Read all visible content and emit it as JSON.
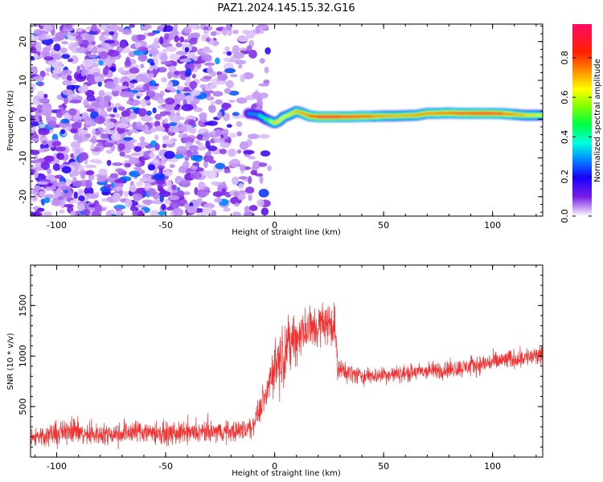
{
  "title": "PAZ1.2024.145.15.32.G16",
  "chart_data": [
    {
      "type": "heatmap",
      "xlabel": "Height of straight line (km)",
      "ylabel": "Frequency (Hz)",
      "xlim": [
        -112,
        123
      ],
      "ylim": [
        -25,
        24.5
      ],
      "xticks": [
        -100,
        -50,
        0,
        50,
        100
      ],
      "xtick_labels": [
        "-100",
        "-50",
        "0",
        "50",
        "100"
      ],
      "yticks": [
        -20,
        -10,
        0,
        10,
        20
      ],
      "ytick_labels": [
        "-20",
        "-10",
        "0",
        "10",
        "20"
      ],
      "colorbar": {
        "label": "Normalized spectral amplitude",
        "range": [
          0,
          0.97
        ],
        "ticks": [
          0.0,
          0.2,
          0.4,
          0.6,
          0.8
        ],
        "tick_labels": [
          "0.0",
          "0.2",
          "0.4",
          "0.6",
          "0.8"
        ],
        "colormap": "gist_rainbow_r"
      },
      "noise_region": {
        "x_range": [
          -112,
          -8
        ],
        "y_range": [
          -25,
          24.5
        ],
        "max_amplitude": 0.3
      },
      "signal_ridge": [
        {
          "x": -12,
          "y": 1.5,
          "amp": 0.25
        },
        {
          "x": -7,
          "y": 1.0,
          "amp": 0.35
        },
        {
          "x": -4,
          "y": 0.0,
          "amp": 0.45
        },
        {
          "x": -2,
          "y": -0.5,
          "amp": 0.55
        },
        {
          "x": 0,
          "y": -1.0,
          "amp": 0.65
        },
        {
          "x": 2,
          "y": -0.5,
          "amp": 0.7
        },
        {
          "x": 4,
          "y": 0.5,
          "amp": 0.6
        },
        {
          "x": 7,
          "y": 1.2,
          "amp": 0.65
        },
        {
          "x": 10,
          "y": 2.0,
          "amp": 0.7
        },
        {
          "x": 13,
          "y": 1.5,
          "amp": 0.75
        },
        {
          "x": 16,
          "y": 0.8,
          "amp": 0.8
        },
        {
          "x": 20,
          "y": 0.6,
          "amp": 0.92
        },
        {
          "x": 25,
          "y": 0.6,
          "amp": 0.95
        },
        {
          "x": 30,
          "y": 0.6,
          "amp": 0.92
        },
        {
          "x": 35,
          "y": 0.6,
          "amp": 0.85
        },
        {
          "x": 40,
          "y": 0.7,
          "amp": 0.9
        },
        {
          "x": 45,
          "y": 0.7,
          "amp": 0.8
        },
        {
          "x": 50,
          "y": 0.8,
          "amp": 0.75
        },
        {
          "x": 55,
          "y": 0.8,
          "amp": 0.72
        },
        {
          "x": 60,
          "y": 0.9,
          "amp": 0.72
        },
        {
          "x": 65,
          "y": 1.0,
          "amp": 0.75
        },
        {
          "x": 70,
          "y": 1.5,
          "amp": 0.78
        },
        {
          "x": 75,
          "y": 1.5,
          "amp": 0.8
        },
        {
          "x": 80,
          "y": 1.6,
          "amp": 0.82
        },
        {
          "x": 85,
          "y": 1.5,
          "amp": 0.85
        },
        {
          "x": 90,
          "y": 1.5,
          "amp": 0.88
        },
        {
          "x": 95,
          "y": 1.5,
          "amp": 0.9
        },
        {
          "x": 100,
          "y": 1.5,
          "amp": 0.9
        },
        {
          "x": 105,
          "y": 1.4,
          "amp": 0.85
        },
        {
          "x": 110,
          "y": 1.2,
          "amp": 0.75
        },
        {
          "x": 115,
          "y": 1.0,
          "amp": 0.7
        },
        {
          "x": 120,
          "y": 1.0,
          "amp": 0.65
        },
        {
          "x": 123,
          "y": 1.0,
          "amp": 0.6
        }
      ]
    },
    {
      "type": "line",
      "xlabel": "Height of straight line (km)",
      "ylabel": "SNR (10 * v/v)",
      "xlim": [
        -112,
        123
      ],
      "ylim": [
        0,
        1900
      ],
      "xticks": [
        -100,
        -50,
        0,
        50,
        100
      ],
      "xtick_labels": [
        "-100",
        "-50",
        "0",
        "50",
        "100"
      ],
      "yticks": [
        500,
        1000,
        1500
      ],
      "ytick_labels": [
        "500",
        "1000",
        "1500"
      ],
      "color": "#f03232",
      "envelope": [
        {
          "x": -112,
          "base": 200,
          "amp": 140
        },
        {
          "x": -97,
          "base": 240,
          "amp": 170
        },
        {
          "x": -93,
          "base": 300,
          "amp": 220
        },
        {
          "x": -88,
          "base": 220,
          "amp": 150
        },
        {
          "x": -75,
          "base": 230,
          "amp": 150
        },
        {
          "x": -62,
          "base": 260,
          "amp": 170
        },
        {
          "x": -50,
          "base": 230,
          "amp": 160
        },
        {
          "x": -35,
          "base": 240,
          "amp": 150
        },
        {
          "x": -18,
          "base": 260,
          "amp": 150
        },
        {
          "x": -11,
          "base": 280,
          "amp": 160
        },
        {
          "x": -8,
          "base": 420,
          "amp": 150
        },
        {
          "x": -4,
          "base": 620,
          "amp": 220
        },
        {
          "x": -1,
          "base": 860,
          "amp": 350
        },
        {
          "x": 3,
          "base": 1000,
          "amp": 420
        },
        {
          "x": 8,
          "base": 1150,
          "amp": 400
        },
        {
          "x": 14,
          "base": 1250,
          "amp": 350
        },
        {
          "x": 20,
          "base": 1300,
          "amp": 340
        },
        {
          "x": 25,
          "base": 1330,
          "amp": 320
        },
        {
          "x": 27.5,
          "base": 1330,
          "amp": 300
        },
        {
          "x": 29,
          "base": 870,
          "amp": 160
        },
        {
          "x": 40,
          "base": 800,
          "amp": 120
        },
        {
          "x": 55,
          "base": 820,
          "amp": 120
        },
        {
          "x": 70,
          "base": 850,
          "amp": 130
        },
        {
          "x": 85,
          "base": 880,
          "amp": 130
        },
        {
          "x": 100,
          "base": 940,
          "amp": 140
        },
        {
          "x": 115,
          "base": 990,
          "amp": 140
        },
        {
          "x": 123,
          "base": 1000,
          "amp": 140
        }
      ]
    }
  ]
}
